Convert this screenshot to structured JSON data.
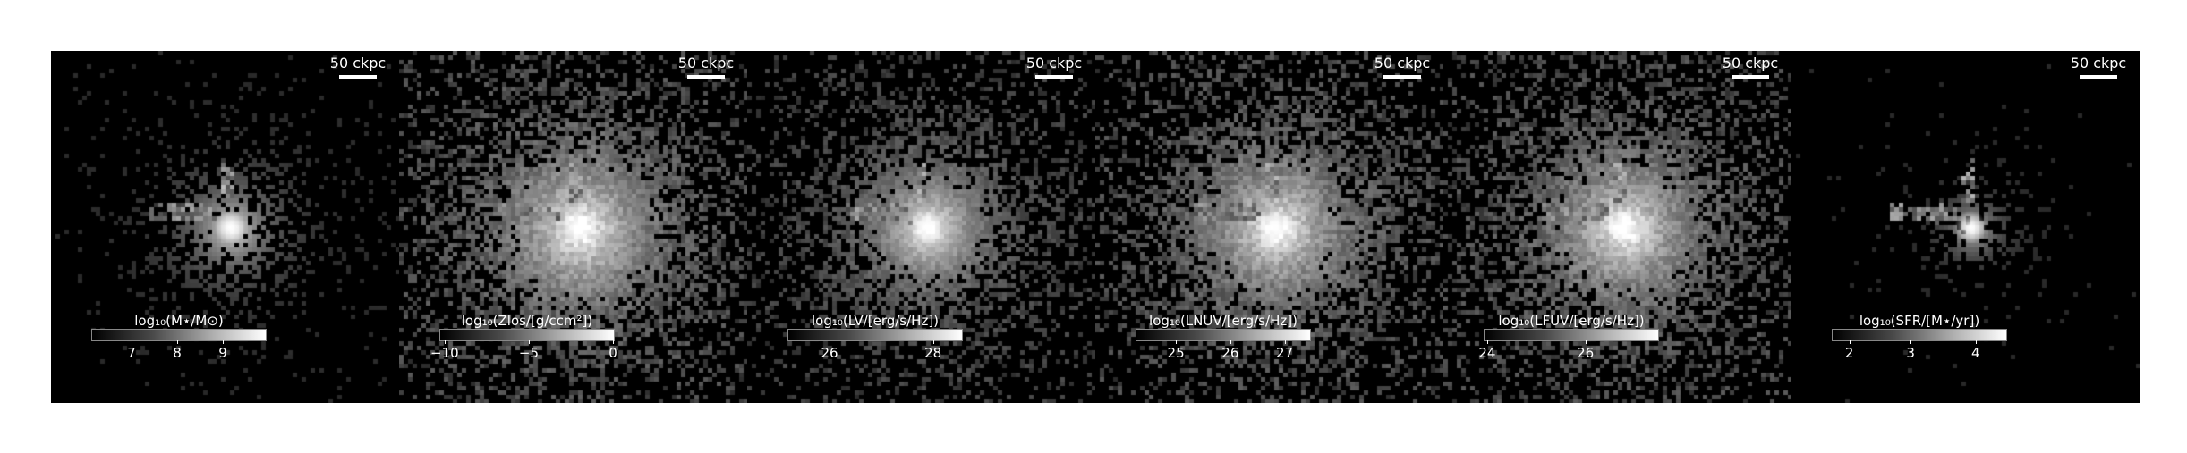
{
  "panels": [
    {
      "scale_label": "50 ckpc",
      "cbar_title": "log₁₀(M⋆/M⊙)",
      "ticks": [
        {
          "label": "7",
          "frac": 0.23
        },
        {
          "label": "8",
          "frac": 0.49
        },
        {
          "label": "9",
          "frac": 0.75
        }
      ],
      "style": {
        "spread": 0.9,
        "core": 1.0,
        "outer": 0.05
      }
    },
    {
      "scale_label": "50 ckpc",
      "cbar_title": "log₁₀(Zlos/[g/ccm²])",
      "ticks": [
        {
          "label": "−10",
          "frac": 0.03
        },
        {
          "label": "−5",
          "frac": 0.51
        },
        {
          "label": "0",
          "frac": 0.99
        }
      ],
      "style": {
        "spread": 1.6,
        "core": 1.0,
        "outer": 0.55
      }
    },
    {
      "scale_label": "50 ckpc",
      "cbar_title": "log₁₀(LV/[erg/s/Hz])",
      "ticks": [
        {
          "label": "26",
          "frac": 0.24
        },
        {
          "label": "28",
          "frac": 0.83
        }
      ],
      "style": {
        "spread": 1.3,
        "core": 1.0,
        "outer": 0.4
      }
    },
    {
      "scale_label": "50 ckpc",
      "cbar_title": "log₁₀(LNUV/[erg/s/Hz])",
      "ticks": [
        {
          "label": "25",
          "frac": 0.23
        },
        {
          "label": "26",
          "frac": 0.54
        },
        {
          "label": "27",
          "frac": 0.85
        }
      ],
      "style": {
        "spread": 1.5,
        "core": 1.0,
        "outer": 0.55
      }
    },
    {
      "scale_label": "50 ckpc",
      "cbar_title": "log₁₀(LFUV/[erg/s/Hz])",
      "ticks": [
        {
          "label": "24",
          "frac": 0.02
        },
        {
          "label": "26",
          "frac": 0.58
        }
      ],
      "style": {
        "spread": 1.5,
        "core": 1.0,
        "outer": 0.55
      }
    },
    {
      "scale_label": "50 ckpc",
      "cbar_title": "log₁₀(SFR/[M⋆/yr])",
      "ticks": [
        {
          "label": "2",
          "frac": 0.1
        },
        {
          "label": "3",
          "frac": 0.45
        },
        {
          "label": "4",
          "frac": 0.82
        }
      ],
      "style": {
        "spread": 0.5,
        "core": 1.0,
        "outer": 0.02
      }
    }
  ]
}
